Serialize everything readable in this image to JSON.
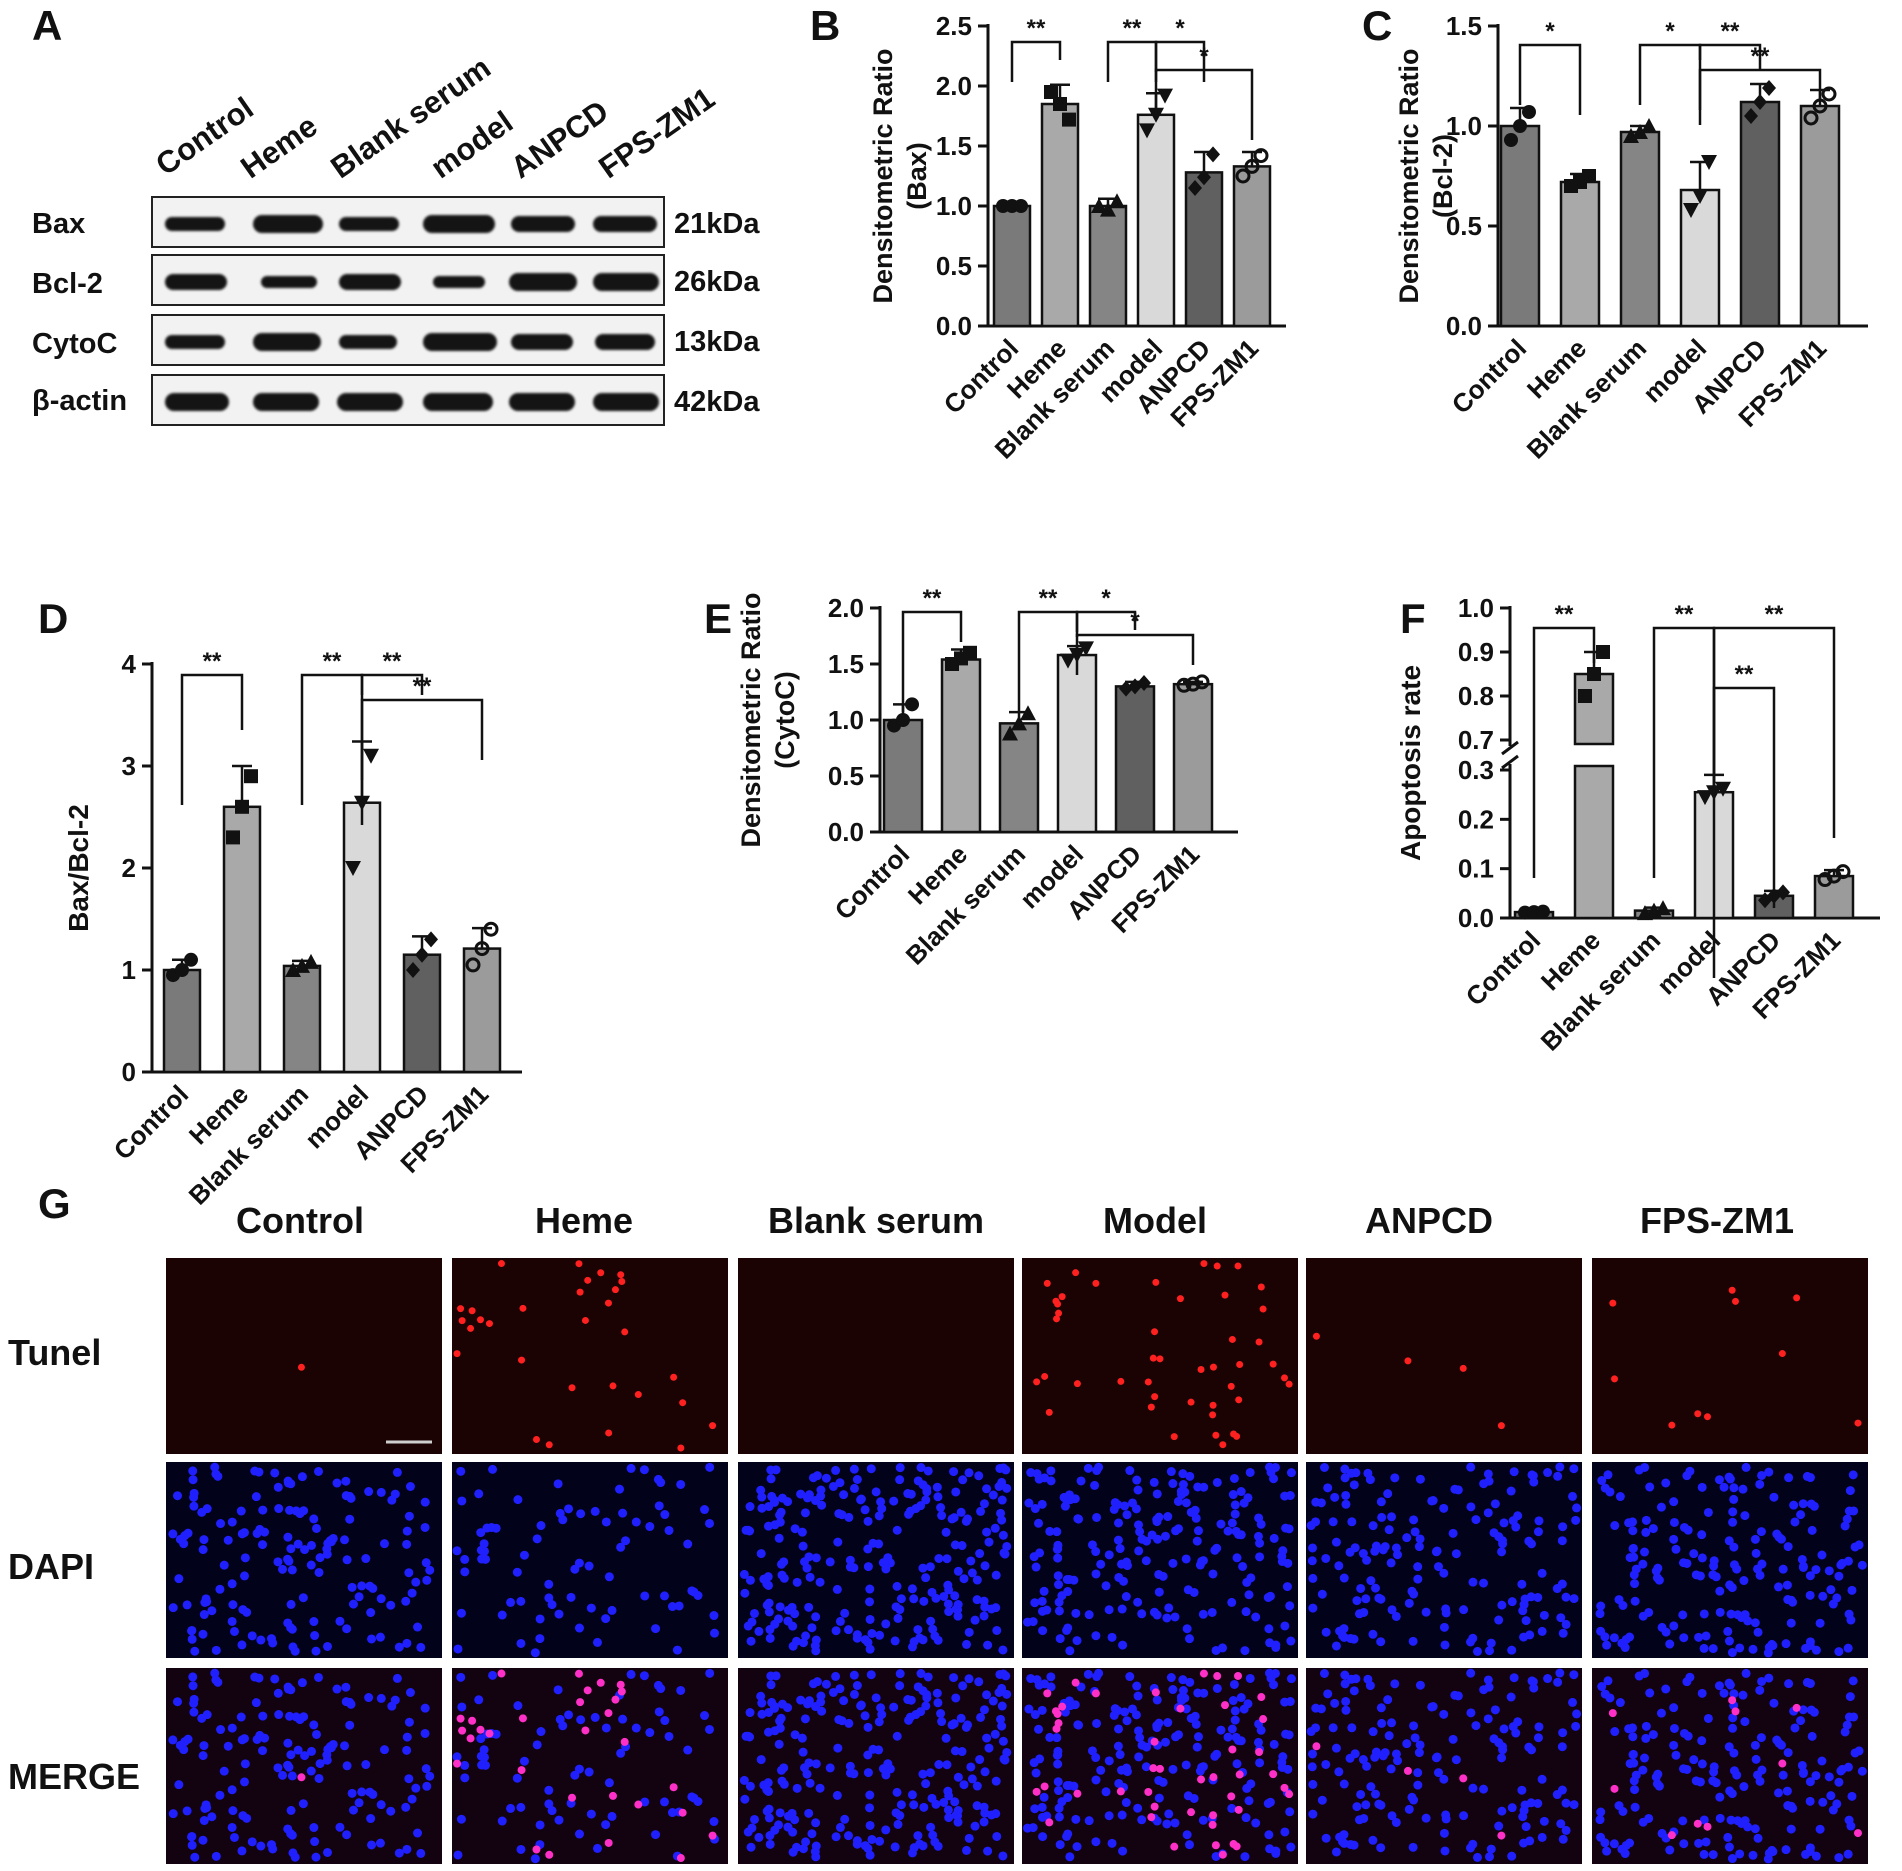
{
  "panel_letters": {
    "a": "A",
    "b": "B",
    "c": "C",
    "d": "D",
    "e": "E",
    "f": "F",
    "g": "G"
  },
  "colors": {
    "control": "#7a7a7a",
    "heme": "#a9a9a9",
    "blank": "#858585",
    "model": "#d9d9d9",
    "anpcd": "#606060",
    "fpszm1": "#9b9b9b",
    "tunel_bg": "#1b0303",
    "dapi_bg": "#02021a",
    "merge_bg": "#13020f",
    "tunel_dot": "#ff2020",
    "dapi_dot": "#2020ff",
    "merge_dot": "#ff30c8"
  },
  "blot": {
    "lanes": [
      "Control",
      "Heme",
      "Blank serum",
      "model",
      "ANPCD",
      "FPS-ZM1"
    ],
    "rows": [
      {
        "name": "Bax",
        "kda": "21kDa"
      },
      {
        "name": "Bcl-2",
        "kda": "26kDa"
      },
      {
        "name": "CytoC",
        "kda": "13kDa"
      },
      {
        "name": "β-actin",
        "kda": "42kDa"
      }
    ]
  },
  "chart_data": [
    {
      "panel": "B",
      "type": "bar",
      "categories": [
        "Control",
        "Heme",
        "Blank serum",
        "model",
        "ANPCD",
        "FPS-ZM1"
      ],
      "values": [
        1.0,
        1.85,
        1.0,
        1.76,
        1.28,
        1.33
      ],
      "errors": [
        0.01,
        0.16,
        0.06,
        0.18,
        0.17,
        0.12
      ],
      "points": [
        [
          1.0,
          1.0,
          1.0
        ],
        [
          1.95,
          1.85,
          1.72
        ],
        [
          1.0,
          0.97,
          1.04
        ],
        [
          1.63,
          1.76,
          1.92
        ],
        [
          1.15,
          1.24,
          1.43
        ],
        [
          1.25,
          1.33,
          1.42
        ]
      ],
      "title": "",
      "xlabel": "",
      "ylabel": "Densitometric Ratio (Bax)",
      "ylim": [
        0,
        2.5
      ],
      "yticks": [
        "0.0",
        "0.5",
        "1.0",
        "1.5",
        "2.0",
        "2.5"
      ],
      "significance": [
        {
          "from": "Control",
          "to": "Heme",
          "label": "**"
        },
        {
          "from": "Blank serum",
          "to": "model",
          "label": "**"
        },
        {
          "from": "model",
          "to": "ANPCD",
          "label": "*"
        },
        {
          "from": "model",
          "to": "FPS-ZM1",
          "label": "*"
        }
      ]
    },
    {
      "panel": "C",
      "type": "bar",
      "categories": [
        "Control",
        "Heme",
        "Blank serum",
        "model",
        "ANPCD",
        "FPS-ZM1"
      ],
      "values": [
        1.0,
        0.72,
        0.97,
        0.68,
        1.12,
        1.1
      ],
      "errors": [
        0.09,
        0.04,
        0.03,
        0.14,
        0.09,
        0.08
      ],
      "points": [
        [
          0.93,
          1.0,
          1.07
        ],
        [
          0.7,
          0.72,
          0.75
        ],
        [
          0.95,
          0.97,
          1.0
        ],
        [
          0.58,
          0.65,
          0.82
        ],
        [
          1.05,
          1.12,
          1.19
        ],
        [
          1.04,
          1.1,
          1.16
        ]
      ],
      "title": "",
      "xlabel": "",
      "ylabel": "Densitometric Ratio (Bcl-2)",
      "ylim": [
        0,
        1.5
      ],
      "yticks": [
        "0.0",
        "0.5",
        "1.0",
        "1.5"
      ],
      "significance": [
        {
          "from": "Control",
          "to": "Heme",
          "label": "*"
        },
        {
          "from": "Blank serum",
          "to": "model",
          "label": "*"
        },
        {
          "from": "model",
          "to": "ANPCD",
          "label": "**"
        },
        {
          "from": "model",
          "to": "FPS-ZM1",
          "label": "**"
        }
      ]
    },
    {
      "panel": "D",
      "type": "bar",
      "categories": [
        "Control",
        "Heme",
        "Blank serum",
        "model",
        "ANPCD",
        "FPS-ZM1"
      ],
      "values": [
        1.0,
        2.6,
        1.04,
        2.64,
        1.15,
        1.21
      ],
      "errors": [
        0.1,
        0.4,
        0.05,
        0.6,
        0.18,
        0.2
      ],
      "points": [
        [
          0.95,
          1.0,
          1.1
        ],
        [
          2.3,
          2.6,
          2.9
        ],
        [
          1.0,
          1.04,
          1.08
        ],
        [
          2.0,
          2.64,
          3.1
        ],
        [
          1.0,
          1.15,
          1.3
        ],
        [
          1.05,
          1.21,
          1.4
        ]
      ],
      "title": "",
      "xlabel": "",
      "ylabel": "Bax/Bcl-2",
      "ylim": [
        0,
        4
      ],
      "yticks": [
        "0",
        "1",
        "2",
        "3",
        "4"
      ],
      "significance": [
        {
          "from": "Control",
          "to": "Heme",
          "label": "**"
        },
        {
          "from": "Blank serum",
          "to": "model",
          "label": "**"
        },
        {
          "from": "model",
          "to": "ANPCD",
          "label": "**"
        },
        {
          "from": "model",
          "to": "FPS-ZM1",
          "label": "**"
        }
      ]
    },
    {
      "panel": "E",
      "type": "bar",
      "categories": [
        "Control",
        "Heme",
        "Blank serum",
        "model",
        "ANPCD",
        "FPS-ZM1"
      ],
      "values": [
        1.0,
        1.54,
        0.97,
        1.58,
        1.3,
        1.32
      ],
      "errors": [
        0.14,
        0.09,
        0.1,
        0.08,
        0.04,
        0.02
      ],
      "points": [
        [
          0.95,
          1.0,
          1.14
        ],
        [
          1.5,
          1.55,
          1.6
        ],
        [
          0.88,
          0.97,
          1.06
        ],
        [
          1.53,
          1.58,
          1.64
        ],
        [
          1.28,
          1.3,
          1.33
        ],
        [
          1.31,
          1.32,
          1.34
        ]
      ],
      "title": "",
      "xlabel": "",
      "ylabel": "Densitometric Ratio (CytoC)",
      "ylim": [
        0,
        2.0
      ],
      "yticks": [
        "0.0",
        "0.5",
        "1.0",
        "1.5",
        "2.0"
      ],
      "significance": [
        {
          "from": "Control",
          "to": "Heme",
          "label": "**"
        },
        {
          "from": "Blank serum",
          "to": "model",
          "label": "**"
        },
        {
          "from": "model",
          "to": "ANPCD",
          "label": "*"
        },
        {
          "from": "model",
          "to": "FPS-ZM1",
          "label": "*"
        }
      ]
    },
    {
      "panel": "F",
      "type": "bar",
      "categories": [
        "Control",
        "Heme",
        "Blank serum",
        "model",
        "ANPCD",
        "FPS-ZM1"
      ],
      "values": [
        0.012,
        0.85,
        0.015,
        0.255,
        0.045,
        0.085
      ],
      "errors": [
        0.002,
        0.05,
        0.006,
        0.035,
        0.01,
        0.012
      ],
      "points": [
        [
          0.011,
          0.012,
          0.013
        ],
        [
          0.8,
          0.85,
          0.9
        ],
        [
          0.01,
          0.015,
          0.02
        ],
        [
          0.245,
          0.255,
          0.262
        ],
        [
          0.036,
          0.045,
          0.052
        ],
        [
          0.078,
          0.085,
          0.094
        ]
      ],
      "title": "",
      "xlabel": "",
      "ylabel": "Apoptosis rate",
      "axis_break": {
        "lower": [
          0,
          0.3
        ],
        "upper": [
          0.7,
          1.0
        ]
      },
      "yticks_lower": [
        "0.0",
        "0.1",
        "0.2",
        "0.3"
      ],
      "yticks_upper": [
        "0.7",
        "0.8",
        "0.9",
        "1.0"
      ],
      "significance": [
        {
          "from": "Control",
          "to": "Heme",
          "label": "**"
        },
        {
          "from": "Blank serum",
          "to": "model",
          "label": "**"
        },
        {
          "from": "model",
          "to": "ANPCD",
          "label": "**"
        },
        {
          "from": "model",
          "to": "FPS-ZM1",
          "label": "**"
        }
      ]
    }
  ],
  "microscopy": {
    "columns": [
      "Control",
      "Heme",
      "Blank serum",
      "Model",
      "ANPCD",
      "FPS-ZM1"
    ],
    "rows": [
      "Tunel",
      "DAPI",
      "MERGE"
    ],
    "tunel_counts": [
      1,
      30,
      0,
      45,
      4,
      10
    ],
    "dapi_counts": [
      150,
      80,
      240,
      200,
      160,
      180
    ]
  }
}
